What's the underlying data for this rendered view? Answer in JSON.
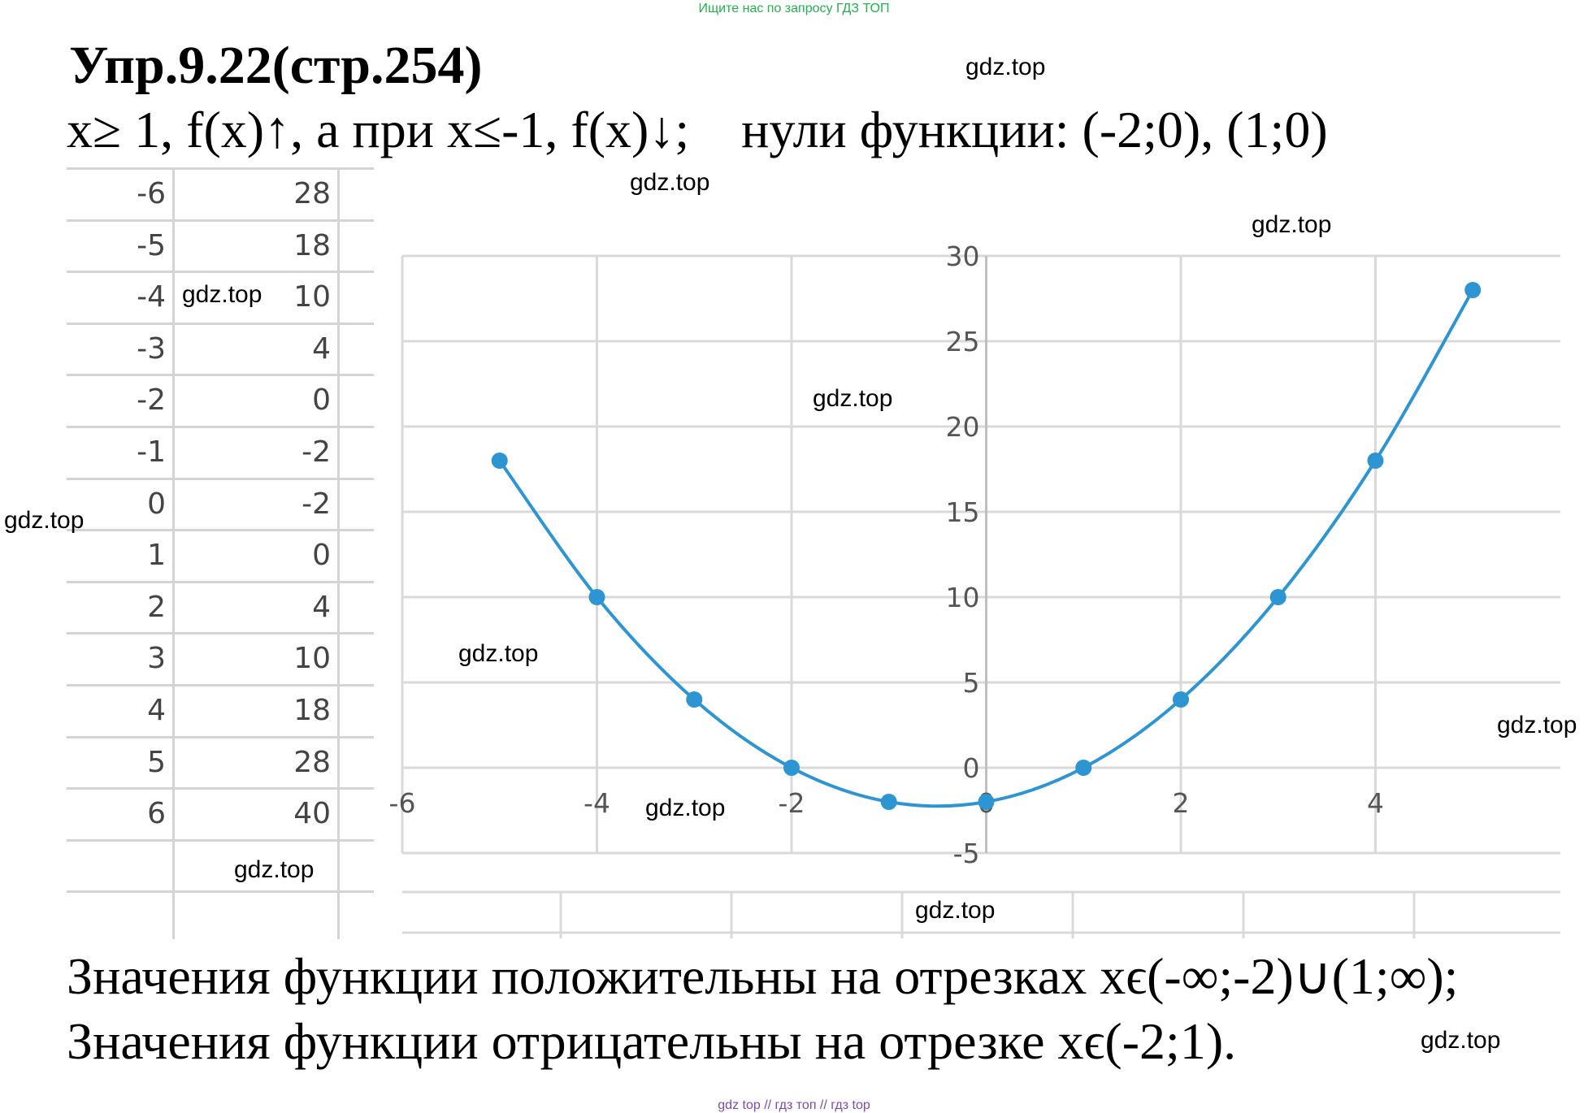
{
  "banner_top": "Ищите нас по запросу ГДЗ ТОП",
  "banner_bottom": "gdz top  //  гдз топ  //  гдз top",
  "title": "Упр.9.22(стр.254)",
  "subtitle_part1": "x≥ 1, f(x)↑, а при x≤-1, f(x)↓;",
  "subtitle_part2": "нули функции: (-2;0), (1;0)",
  "conclusion_line1": "Значения функции положительны на отрезках xϵ(-∞;-2)∪(1;∞);",
  "conclusion_line2": "Значения функции отрицательны на отрезке xϵ(-2;1).",
  "watermark": "gdz.top",
  "value_table": {
    "rows": [
      {
        "x": "-6",
        "y": "28"
      },
      {
        "x": "-5",
        "y": "18"
      },
      {
        "x": "-4",
        "y": "10"
      },
      {
        "x": "-3",
        "y": "4"
      },
      {
        "x": "-2",
        "y": "0"
      },
      {
        "x": "-1",
        "y": "-2"
      },
      {
        "x": "0",
        "y": "-2"
      },
      {
        "x": "1",
        "y": "0"
      },
      {
        "x": "2",
        "y": "4"
      },
      {
        "x": "3",
        "y": "10"
      },
      {
        "x": "4",
        "y": "18"
      },
      {
        "x": "5",
        "y": "28"
      },
      {
        "x": "6",
        "y": "40"
      }
    ]
  },
  "chart_data": {
    "type": "scatter",
    "title": "",
    "xlabel": "",
    "ylabel": "",
    "xlim": [
      -6,
      5.9
    ],
    "ylim": [
      -5,
      30
    ],
    "x_ticks": [
      "-6",
      "-4",
      "-2",
      "0",
      "2",
      "4"
    ],
    "y_ticks": [
      "-5",
      "0",
      "5",
      "10",
      "15",
      "20",
      "25",
      "30"
    ],
    "grid": true,
    "smooth_line": true,
    "series": [
      {
        "color": "#2e95d3",
        "x": [
          -5,
          -4,
          -3,
          -2,
          -1,
          0,
          1,
          2,
          3,
          4,
          5
        ],
        "y": [
          18,
          10,
          4,
          0,
          -2,
          -2,
          0,
          4,
          10,
          18,
          28
        ]
      }
    ]
  }
}
